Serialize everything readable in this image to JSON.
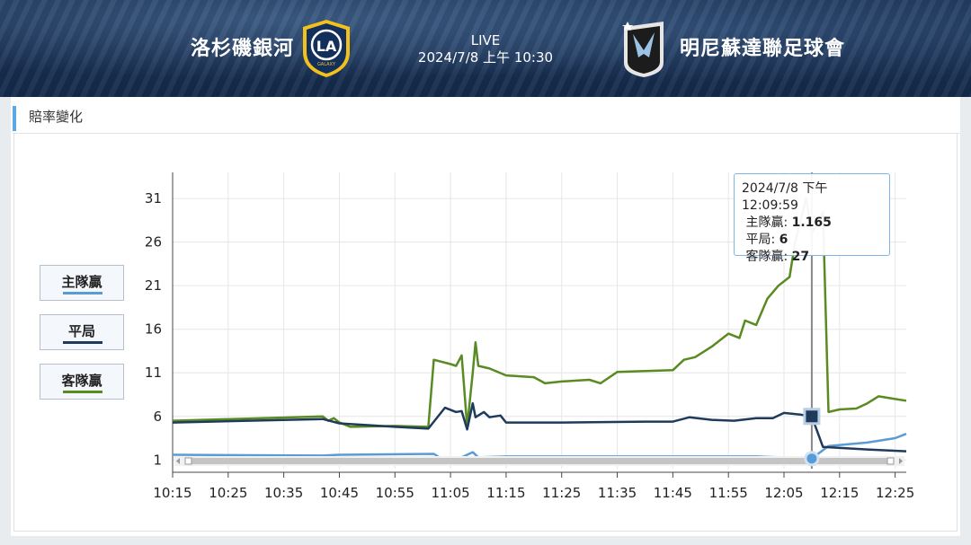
{
  "header": {
    "home_team": "洛杉磯銀河",
    "away_team": "明尼蘇達聯足球會",
    "status": "LIVE",
    "datetime": "2024/7/8 上午 10:30",
    "home_logo_icon": "la-galaxy-logo",
    "away_logo_icon": "minnesota-united-logo"
  },
  "panel": {
    "title": "賠率變化"
  },
  "legend": [
    {
      "label": "主隊贏",
      "color": "#5b9bd5"
    },
    {
      "label": "平局",
      "color": "#1f3b5b"
    },
    {
      "label": "客隊贏",
      "color": "#5a8a22"
    }
  ],
  "tooltip": {
    "time": "2024/7/8 下午 12:09:59",
    "rows": [
      {
        "label": "主隊贏",
        "value": "1.165"
      },
      {
        "label": "平局",
        "value": "6"
      },
      {
        "label": "客隊贏",
        "value": "27"
      }
    ]
  },
  "chart_data": {
    "type": "line",
    "x_ticks": [
      "10:15",
      "10:25",
      "10:35",
      "10:45",
      "10:55",
      "11:05",
      "11:15",
      "11:25",
      "11:35",
      "11:45",
      "11:55",
      "12:05",
      "12:15",
      "12:25"
    ],
    "y_ticks": [
      1,
      6,
      11,
      16,
      21,
      26,
      31
    ],
    "xlim": [
      "10:15",
      "12:27"
    ],
    "ylim": [
      0,
      34
    ],
    "grid": true,
    "legend_position": "left",
    "hover_time": "12:10",
    "series": [
      {
        "name": "主隊贏",
        "color": "#5b9bd5",
        "points": [
          [
            "10:15",
            1.6
          ],
          [
            "10:42",
            1.5
          ],
          [
            "10:45",
            1.6
          ],
          [
            "11:02",
            1.7
          ],
          [
            "11:03",
            1.3
          ],
          [
            "11:07",
            1.3
          ],
          [
            "11:09",
            1.9
          ],
          [
            "11:10",
            1.3
          ],
          [
            "11:15",
            1.4
          ],
          [
            "11:45",
            1.4
          ],
          [
            "12:00",
            1.4
          ],
          [
            "12:10",
            1.165
          ],
          [
            "12:13",
            2.6
          ],
          [
            "12:20",
            3.0
          ],
          [
            "12:25",
            3.5
          ],
          [
            "12:27",
            4.0
          ]
        ]
      },
      {
        "name": "平局",
        "color": "#1f3b5b",
        "points": [
          [
            "10:15",
            5.3
          ],
          [
            "10:42",
            5.7
          ],
          [
            "10:45",
            5.2
          ],
          [
            "10:55",
            4.8
          ],
          [
            "11:01",
            4.6
          ],
          [
            "11:04",
            7.0
          ],
          [
            "11:06",
            6.5
          ],
          [
            "11:07",
            6.6
          ],
          [
            "11:08",
            4.5
          ],
          [
            "11:09",
            7.5
          ],
          [
            "11:09.5",
            5.9
          ],
          [
            "11:11",
            6.5
          ],
          [
            "11:12",
            5.9
          ],
          [
            "11:14",
            6.1
          ],
          [
            "11:15",
            5.3
          ],
          [
            "11:25",
            5.3
          ],
          [
            "11:40",
            5.4
          ],
          [
            "11:45",
            5.4
          ],
          [
            "11:48",
            5.9
          ],
          [
            "11:52",
            5.6
          ],
          [
            "11:56",
            5.5
          ],
          [
            "12:00",
            5.8
          ],
          [
            "12:03",
            5.8
          ],
          [
            "12:05",
            6.4
          ],
          [
            "12:08",
            6.2
          ],
          [
            "12:10",
            6.0
          ],
          [
            "12:12",
            2.5
          ],
          [
            "12:20",
            2.2
          ],
          [
            "12:27",
            2.0
          ]
        ]
      },
      {
        "name": "客隊贏",
        "color": "#5a8a22",
        "points": [
          [
            "10:15",
            5.5
          ],
          [
            "10:42",
            6.0
          ],
          [
            "10:43",
            5.5
          ],
          [
            "10:44",
            5.8
          ],
          [
            "10:45",
            5.3
          ],
          [
            "10:47",
            4.8
          ],
          [
            "10:55",
            4.9
          ],
          [
            "11:01",
            4.8
          ],
          [
            "11:02",
            12.5
          ],
          [
            "11:05",
            12.0
          ],
          [
            "11:06",
            11.8
          ],
          [
            "11:07",
            13.0
          ],
          [
            "11:08",
            4.8
          ],
          [
            "11:09",
            11.0
          ],
          [
            "11:09.5",
            14.5
          ],
          [
            "11:10",
            11.8
          ],
          [
            "11:12",
            11.5
          ],
          [
            "11:15",
            10.7
          ],
          [
            "11:20",
            10.5
          ],
          [
            "11:22",
            9.8
          ],
          [
            "11:25",
            10.0
          ],
          [
            "11:30",
            10.2
          ],
          [
            "11:32",
            9.8
          ],
          [
            "11:35",
            11.1
          ],
          [
            "11:45",
            11.3
          ],
          [
            "11:47",
            12.5
          ],
          [
            "11:49",
            12.8
          ],
          [
            "11:52",
            14.0
          ],
          [
            "11:55",
            15.5
          ],
          [
            "11:57",
            15.0
          ],
          [
            "11:58",
            17.0
          ],
          [
            "12:00",
            16.5
          ],
          [
            "12:01",
            18.0
          ],
          [
            "12:02",
            19.5
          ],
          [
            "12:04",
            21.0
          ],
          [
            "12:06",
            22.0
          ],
          [
            "12:07",
            26.0
          ],
          [
            "12:08",
            28.5
          ],
          [
            "12:09",
            31.0
          ],
          [
            "12:10",
            27.0
          ],
          [
            "12:12",
            29.5
          ],
          [
            "12:13",
            6.5
          ],
          [
            "12:15",
            6.8
          ],
          [
            "12:18",
            6.9
          ],
          [
            "12:20",
            7.5
          ],
          [
            "12:22",
            8.3
          ],
          [
            "12:25",
            8.0
          ],
          [
            "12:27",
            7.8
          ]
        ]
      }
    ]
  }
}
